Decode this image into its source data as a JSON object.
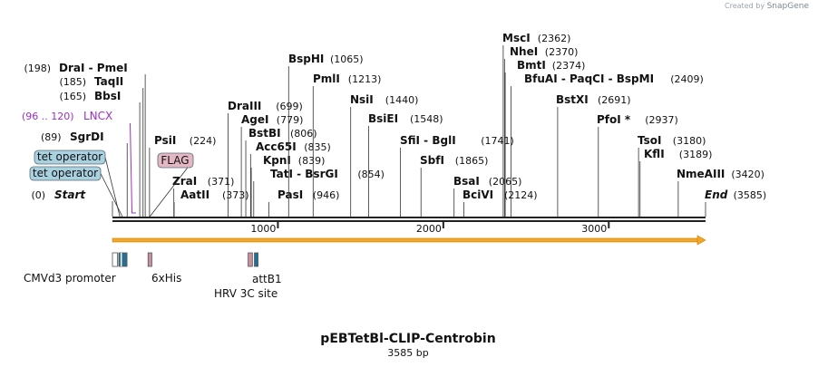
{
  "credit": {
    "created_by": "Created by",
    "brand": "SnapGene"
  },
  "plasmid": {
    "name": "pEBTetBl-CLIP-Centrobin",
    "length": "3585 bp",
    "total_bp": 3585
  },
  "colors": {
    "backbone": "#222222",
    "orf": "#f5a623",
    "tet_box": "#a9d1e0",
    "flag_box": "#e3b7c4",
    "lncx": "#9b30c6",
    "cmv": "#ffffff",
    "tet": "#2b6e8f",
    "his": "#c98ea1",
    "hrv": "#c98ea1",
    "attb": "#1f6ea0"
  },
  "scale_ticks": [
    {
      "pos": 1000,
      "label": "1000"
    },
    {
      "pos": 2000,
      "label": "2000"
    },
    {
      "pos": 3000,
      "label": "3000"
    }
  ],
  "sites": [
    {
      "name": "Start",
      "pos": 0,
      "loc": "(0)",
      "italic": true
    },
    {
      "name": "SgrDI",
      "pos": 89,
      "loc": "(89)"
    },
    {
      "name": "BbsI",
      "pos": 165,
      "loc": "(165)"
    },
    {
      "name": "TaqII",
      "pos": 185,
      "loc": "(185)"
    },
    {
      "name": "DraI - PmeI",
      "pos": 198,
      "loc": "(198)"
    },
    {
      "name": "PsiI",
      "pos": 224,
      "loc": "(224)"
    },
    {
      "name": "ZraI",
      "pos": 371,
      "loc": "(371)"
    },
    {
      "name": "AatII",
      "pos": 373,
      "loc": "(373)"
    },
    {
      "name": "DraIII",
      "pos": 699,
      "loc": "(699)"
    },
    {
      "name": "AgeI",
      "pos": 779,
      "loc": "(779)"
    },
    {
      "name": "BstBI",
      "pos": 806,
      "loc": "(806)"
    },
    {
      "name": "Acc65I",
      "pos": 835,
      "loc": "(835)"
    },
    {
      "name": "KpnI",
      "pos": 839,
      "loc": "(839)"
    },
    {
      "name": "TatI - BsrGI",
      "pos": 854,
      "loc": "(854)"
    },
    {
      "name": "PasI",
      "pos": 946,
      "loc": "(946)"
    },
    {
      "name": "BspHI",
      "pos": 1065,
      "loc": "(1065)"
    },
    {
      "name": "PmlI",
      "pos": 1213,
      "loc": "(1213)"
    },
    {
      "name": "NsiI",
      "pos": 1440,
      "loc": "(1440)"
    },
    {
      "name": "BsiEI",
      "pos": 1548,
      "loc": "(1548)"
    },
    {
      "name": "SfiI - BglI",
      "pos": 1741,
      "loc": "(1741)"
    },
    {
      "name": "SbfI",
      "pos": 1865,
      "loc": "(1865)"
    },
    {
      "name": "BsaI",
      "pos": 2065,
      "loc": "(2065)"
    },
    {
      "name": "BciVI",
      "pos": 2124,
      "loc": "(2124)"
    },
    {
      "name": "MscI",
      "pos": 2362,
      "loc": "(2362)"
    },
    {
      "name": "NheI",
      "pos": 2370,
      "loc": "(2370)"
    },
    {
      "name": "BmtI",
      "pos": 2374,
      "loc": "(2374)"
    },
    {
      "name": "BfuAI - PaqCI - BspMI",
      "pos": 2409,
      "loc": "(2409)"
    },
    {
      "name": "BstXI",
      "pos": 2691,
      "loc": "(2691)"
    },
    {
      "name": "PfoI *",
      "pos": 2937,
      "loc": "(2937)"
    },
    {
      "name": "TsoI",
      "pos": 3180,
      "loc": "(3180)"
    },
    {
      "name": "KflI",
      "pos": 3189,
      "loc": "(3189)"
    },
    {
      "name": "NmeAIII",
      "pos": 3420,
      "loc": "(3420)"
    },
    {
      "name": "End",
      "pos": 3585,
      "loc": "(3585)",
      "italic": true
    }
  ],
  "primer_bind": {
    "name": "LNCX",
    "loc": "(96 .. 120)",
    "start": 96,
    "end": 120
  },
  "feature_boxes": [
    {
      "name": "tet operator 1",
      "label": "tet operator"
    },
    {
      "name": "tet operator 2",
      "label": "tet operator"
    },
    {
      "name": "FLAG",
      "label": "FLAG"
    }
  ],
  "features": [
    {
      "name": "CMVd3 promoter",
      "label": "CMVd3 promoter",
      "start": 0,
      "end": 30,
      "color": "#ffffff"
    },
    {
      "name": "tet operator block",
      "label": "",
      "start": 38,
      "end": 88,
      "color": "#2b6e8f"
    },
    {
      "name": "6xHis",
      "label": "6xHis",
      "start": 215,
      "end": 238,
      "color": "#c98ea1"
    },
    {
      "name": "HRV 3C site",
      "label": "HRV 3C site",
      "start": 820,
      "end": 846,
      "color": "#c98ea1"
    },
    {
      "name": "attB1",
      "label": "attB1",
      "start": 858,
      "end": 880,
      "color": "#1f6ea0"
    }
  ],
  "orf": {
    "start": 0,
    "end": 3585
  }
}
